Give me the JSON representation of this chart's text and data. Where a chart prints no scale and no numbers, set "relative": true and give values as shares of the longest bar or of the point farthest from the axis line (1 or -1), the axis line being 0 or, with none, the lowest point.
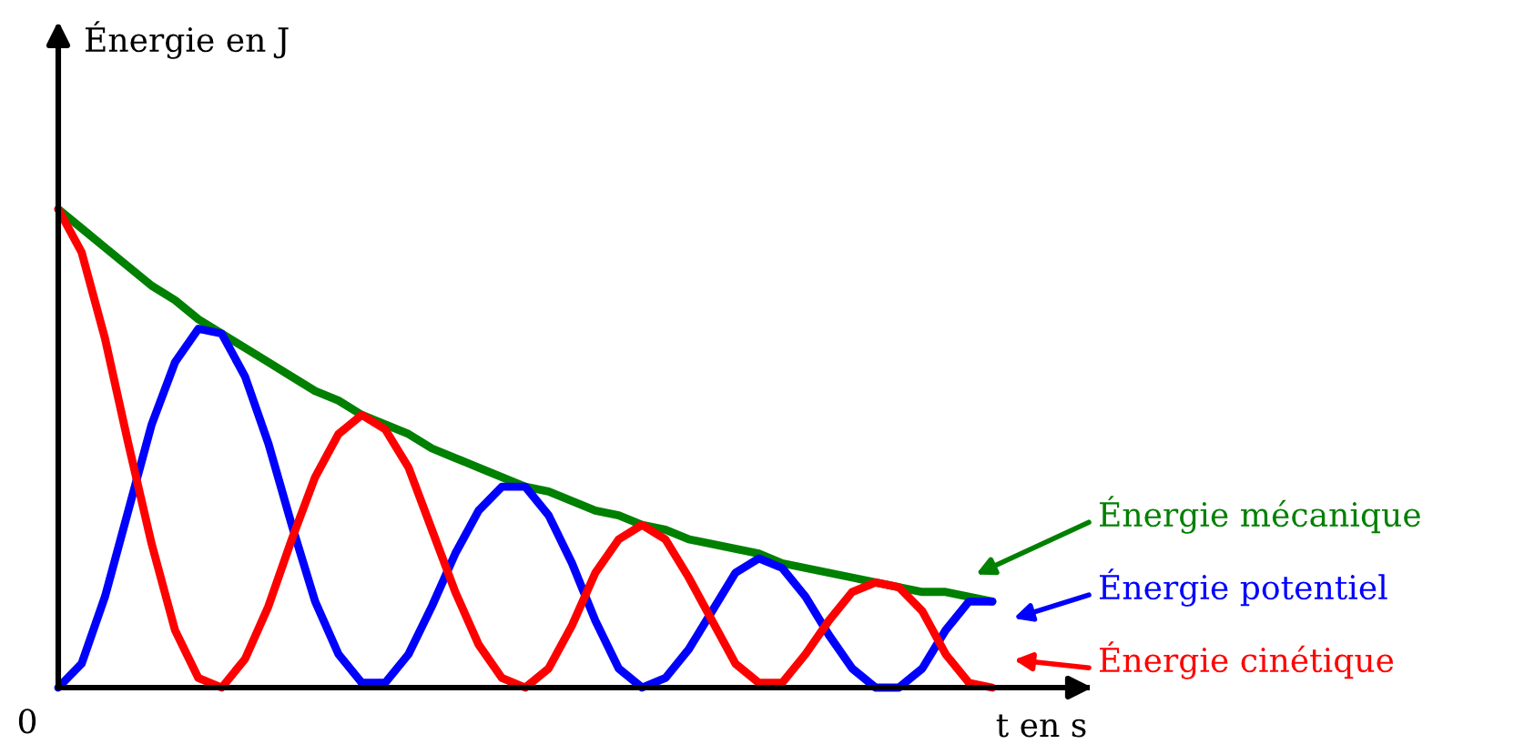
{
  "chart_data": {
    "type": "line",
    "relative": true,
    "xlabel": "t en s",
    "ylabel": "Énergie en J",
    "annotations": [
      "0"
    ],
    "marker": "none",
    "legend": "bottom right",
    "line_style": "solid",
    "categories": [
      null,
      null,
      null,
      null,
      null,
      null,
      null,
      null,
      null,
      null,
      null,
      null,
      null,
      null,
      null,
      null,
      null,
      null,
      null,
      null,
      null,
      null,
      null,
      null,
      null,
      null,
      null,
      null,
      null,
      null,
      null,
      null,
      null,
      null,
      null,
      null,
      null,
      null,
      null,
      null,
      null
    ],
    "series": [
      {
        "name": "Énergie mécanique",
        "color": "#008000",
        "values": [
          1.0,
          0.96,
          0.92,
          0.88,
          0.84,
          0.81,
          0.77,
          0.74,
          0.71,
          0.68,
          0.65,
          0.62,
          0.6,
          0.57,
          0.55,
          0.53,
          0.5,
          0.48,
          0.46,
          0.44,
          0.42,
          0.41,
          0.39,
          0.37,
          0.36,
          0.34,
          0.33,
          0.31,
          0.3,
          0.29,
          0.28,
          0.26,
          0.25,
          0.24,
          0.23,
          0.22,
          0.21,
          0.2,
          0.2,
          0.19,
          0.18
        ]
      },
      {
        "name": "Énergie potentiel",
        "color": "#0000ff",
        "values": [
          0.0,
          0.05,
          0.19,
          0.37,
          0.55,
          0.68,
          0.75,
          0.74,
          0.65,
          0.51,
          0.34,
          0.18,
          0.07,
          0.01,
          0.01,
          0.07,
          0.17,
          0.28,
          0.37,
          0.42,
          0.42,
          0.36,
          0.26,
          0.14,
          0.04,
          0.0,
          0.02,
          0.08,
          0.16,
          0.24,
          0.27,
          0.25,
          0.19,
          0.11,
          0.04,
          0.0,
          0.0,
          0.04,
          0.12,
          0.18,
          0.18
        ]
      },
      {
        "name": "Énergie cinétique",
        "color": "#ff0000",
        "values": [
          1.0,
          0.91,
          0.73,
          0.51,
          0.3,
          0.12,
          0.02,
          0.0,
          0.06,
          0.17,
          0.31,
          0.44,
          0.53,
          0.57,
          0.54,
          0.46,
          0.33,
          0.2,
          0.09,
          0.02,
          0.0,
          0.04,
          0.13,
          0.24,
          0.31,
          0.34,
          0.31,
          0.23,
          0.14,
          0.05,
          0.01,
          0.01,
          0.07,
          0.14,
          0.2,
          0.22,
          0.21,
          0.16,
          0.07,
          0.01,
          0.0
        ]
      }
    ]
  }
}
